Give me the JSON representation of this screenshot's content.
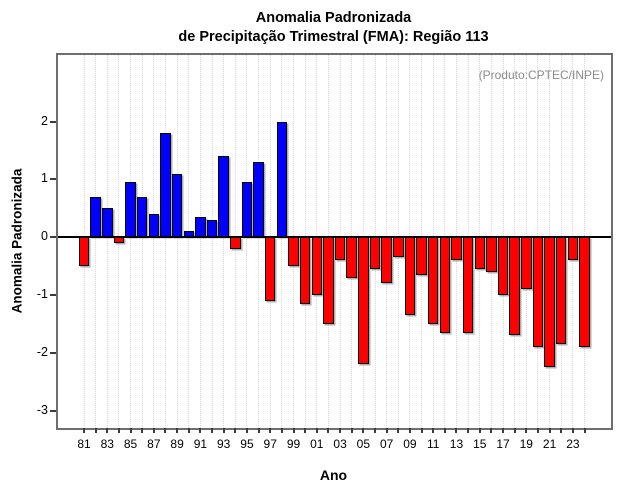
{
  "title": {
    "line1": "Anomalia Padronizada",
    "line2": "de Precipitação Trimestral (FMA): Região 113"
  },
  "producer_note": "(Produto:CPTEC/INPE)",
  "chart_data": {
    "type": "bar",
    "title": "Anomalia Padronizada de Precipitação Trimestral (FMA): Região 113",
    "xlabel": "Ano",
    "ylabel": "Anomalia Padronizada",
    "x": [
      1981,
      1982,
      1983,
      1984,
      1985,
      1986,
      1987,
      1988,
      1989,
      1990,
      1991,
      1992,
      1993,
      1994,
      1995,
      1996,
      1997,
      1998,
      1999,
      2000,
      2001,
      2002,
      2003,
      2004,
      2005,
      2006,
      2007,
      2008,
      2009,
      2010,
      2011,
      2012,
      2013,
      2014,
      2015,
      2016,
      2017,
      2018,
      2019,
      2020,
      2021,
      2022,
      2023,
      2024
    ],
    "values": [
      -0.5,
      0.7,
      0.5,
      -0.1,
      0.95,
      0.7,
      0.4,
      1.8,
      1.1,
      0.1,
      0.35,
      0.3,
      1.4,
      -0.2,
      0.95,
      1.3,
      -1.1,
      2.0,
      -0.5,
      -1.15,
      -1.0,
      -1.5,
      -0.4,
      -0.7,
      -2.2,
      -0.55,
      -0.8,
      -0.35,
      -1.35,
      -0.65,
      -1.5,
      -1.65,
      -0.4,
      -1.65,
      -0.55,
      -0.6,
      -1.0,
      -1.7,
      -0.9,
      -1.9,
      -2.25,
      -1.85,
      -0.4,
      -1.9
    ],
    "x_tick_labels": [
      "81",
      "83",
      "85",
      "87",
      "89",
      "91",
      "93",
      "95",
      "97",
      "99",
      "01",
      "03",
      "05",
      "07",
      "09",
      "11",
      "13",
      "15",
      "17",
      "19",
      "21",
      "23"
    ],
    "y_ticks": [
      2,
      1,
      0,
      -1,
      -2,
      -3
    ],
    "y_tick_labels": [
      "2",
      "1",
      "0",
      "-1",
      "-2",
      "-3"
    ],
    "ylim": [
      -3.3,
      3.15
    ],
    "positive_color": "#0000FF",
    "negative_color": "#FF0000",
    "grid": "vertical-dotted",
    "legend": "none"
  }
}
